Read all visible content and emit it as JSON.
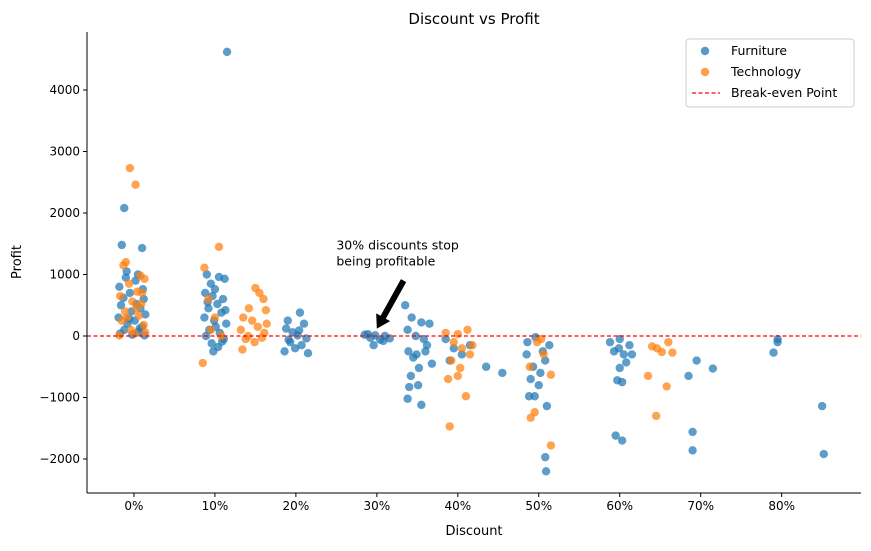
{
  "chart_data": {
    "type": "scatter",
    "title": "Discount vs Profit",
    "xlabel": "Discount",
    "ylabel": "Profit",
    "xlim": [
      -5.8,
      89.8
    ],
    "ylim": [
      -2553,
      4943
    ],
    "xticks": [
      0,
      10,
      20,
      30,
      40,
      50,
      60,
      70,
      80
    ],
    "xtick_labels": [
      "0%",
      "10%",
      "20%",
      "30%",
      "40%",
      "50%",
      "60%",
      "70%",
      "80%"
    ],
    "yticks": [
      -2000,
      -1000,
      0,
      1000,
      2000,
      3000,
      4000
    ],
    "ytick_labels": [
      "−2000",
      "−1000",
      "0",
      "1000",
      "2000",
      "3000",
      "4000"
    ],
    "grid": false,
    "legend_position": "top-right",
    "reference_line": {
      "label": "Break-even Point",
      "y": 0,
      "color": "#ff0000",
      "style": "dashed"
    },
    "annotation": {
      "lines": [
        "30% discounts stop",
        "being profitable"
      ],
      "text_at": [
        25,
        1150
      ],
      "arrow_tip": [
        30,
        120
      ],
      "arrow_tail": [
        33.3,
        900
      ]
    },
    "series": [
      {
        "name": "Furniture",
        "color": "#1f77b4",
        "points": [
          [
            -1.5,
            1480
          ],
          [
            -1.2,
            2080
          ],
          [
            1,
            1430
          ],
          [
            0.5,
            1000
          ],
          [
            -1.8,
            800
          ],
          [
            -1,
            950
          ],
          [
            0.2,
            900
          ],
          [
            -0.5,
            700
          ],
          [
            1.2,
            600
          ],
          [
            -1.6,
            500
          ],
          [
            0.8,
            450
          ],
          [
            -0.3,
            400
          ],
          [
            1.4,
            350
          ],
          [
            -1.9,
            300
          ],
          [
            0.1,
            250
          ],
          [
            -0.8,
            200
          ],
          [
            1,
            150
          ],
          [
            -1.2,
            100
          ],
          [
            0.5,
            60
          ],
          [
            -0.2,
            20
          ],
          [
            1.3,
            10
          ],
          [
            -1.7,
            40
          ],
          [
            0.7,
            120
          ],
          [
            -0.6,
            280
          ],
          [
            0.3,
            520
          ],
          [
            -1.3,
            620
          ],
          [
            1.1,
            760
          ],
          [
            -0.9,
            1050
          ],
          [
            11.5,
            4620
          ],
          [
            9,
            1000
          ],
          [
            10.5,
            960
          ],
          [
            11.2,
            930
          ],
          [
            9.5,
            850
          ],
          [
            10,
            760
          ],
          [
            8.8,
            700
          ],
          [
            9.7,
            650
          ],
          [
            11,
            600
          ],
          [
            10.3,
            520
          ],
          [
            9.2,
            450
          ],
          [
            10.8,
            380
          ],
          [
            8.7,
            300
          ],
          [
            9.9,
            250
          ],
          [
            11.4,
            200
          ],
          [
            10.1,
            150
          ],
          [
            9.3,
            100
          ],
          [
            10.6,
            50
          ],
          [
            8.9,
            0
          ],
          [
            11.1,
            -50
          ],
          [
            9.6,
            -120
          ],
          [
            10.4,
            -180
          ],
          [
            9.8,
            -250
          ],
          [
            10.9,
            -90
          ],
          [
            9.1,
            550
          ],
          [
            11.3,
            420
          ],
          [
            19,
            250
          ],
          [
            20.5,
            380
          ],
          [
            21,
            200
          ],
          [
            18.8,
            120
          ],
          [
            19.6,
            60
          ],
          [
            20.2,
            10
          ],
          [
            21.3,
            -40
          ],
          [
            19.3,
            -100
          ],
          [
            20.7,
            -150
          ],
          [
            18.6,
            -250
          ],
          [
            21.5,
            -280
          ],
          [
            19.9,
            -200
          ],
          [
            20.4,
            90
          ],
          [
            19.1,
            -60
          ],
          [
            28.5,
            20
          ],
          [
            29.2,
            -30
          ],
          [
            29.8,
            10
          ],
          [
            30.4,
            -60
          ],
          [
            31,
            0
          ],
          [
            31.6,
            -40
          ],
          [
            29.6,
            -150
          ],
          [
            30.8,
            -80
          ],
          [
            28.9,
            30
          ],
          [
            33.5,
            500
          ],
          [
            34.3,
            300
          ],
          [
            35.5,
            220
          ],
          [
            36.5,
            200
          ],
          [
            33.8,
            100
          ],
          [
            34.8,
            0
          ],
          [
            35.8,
            -50
          ],
          [
            36.2,
            -150
          ],
          [
            33.9,
            -250
          ],
          [
            34.5,
            -350
          ],
          [
            35.2,
            -520
          ],
          [
            36.8,
            -450
          ],
          [
            34.2,
            -650
          ],
          [
            34,
            -830
          ],
          [
            35.1,
            -800
          ],
          [
            33.8,
            -1020
          ],
          [
            35.5,
            -1120
          ],
          [
            36,
            -250
          ],
          [
            34.9,
            -300
          ],
          [
            38.5,
            -50
          ],
          [
            39.5,
            -200
          ],
          [
            40.5,
            -300
          ],
          [
            41.5,
            -150
          ],
          [
            39,
            -400
          ],
          [
            43.5,
            -500
          ],
          [
            45.5,
            -600
          ],
          [
            48.5,
            -300
          ],
          [
            49,
            -700
          ],
          [
            49.5,
            -980
          ],
          [
            48.8,
            -980
          ],
          [
            50.2,
            -600
          ],
          [
            50.8,
            -400
          ],
          [
            51.3,
            -150
          ],
          [
            49.6,
            -20
          ],
          [
            50.5,
            -250
          ],
          [
            51,
            -1140
          ],
          [
            50.8,
            -1970
          ],
          [
            50.9,
            -2200
          ],
          [
            49.3,
            -500
          ],
          [
            50,
            -800
          ],
          [
            48.6,
            -100
          ],
          [
            58.8,
            -100
          ],
          [
            59.3,
            -250
          ],
          [
            60,
            -50
          ],
          [
            60.5,
            -300
          ],
          [
            61.2,
            -150
          ],
          [
            59.7,
            -720
          ],
          [
            60.3,
            -750
          ],
          [
            60,
            -520
          ],
          [
            60.8,
            -430
          ],
          [
            61.5,
            -300
          ],
          [
            59.5,
            -1620
          ],
          [
            60.3,
            -1700
          ],
          [
            59.9,
            -200
          ],
          [
            68.5,
            -650
          ],
          [
            69,
            -1560
          ],
          [
            69,
            -1860
          ],
          [
            69.5,
            -400
          ],
          [
            71.5,
            -530
          ],
          [
            79,
            -270
          ],
          [
            79.5,
            -50
          ],
          [
            79.5,
            -100
          ],
          [
            85,
            -1140
          ],
          [
            85.2,
            -1920
          ]
        ]
      },
      {
        "name": "Technology",
        "color": "#ff7f0e",
        "points": [
          [
            -0.5,
            2730
          ],
          [
            0.2,
            2460
          ],
          [
            -1.3,
            1150
          ],
          [
            -1,
            1200
          ],
          [
            0.8,
            980
          ],
          [
            1.3,
            930
          ],
          [
            -0.6,
            850
          ],
          [
            0.4,
            720
          ],
          [
            1,
            700
          ],
          [
            -1.7,
            650
          ],
          [
            -0.2,
            560
          ],
          [
            0.9,
            520
          ],
          [
            -1.1,
            400
          ],
          [
            0.6,
            330
          ],
          [
            -1.5,
            250
          ],
          [
            1.2,
            180
          ],
          [
            -0.4,
            100
          ],
          [
            0.1,
            40
          ],
          [
            -1.8,
            10
          ],
          [
            1.4,
            60
          ],
          [
            -0.9,
            300
          ],
          [
            0.3,
            450
          ],
          [
            8.5,
            -440
          ],
          [
            8.7,
            1110
          ],
          [
            10.5,
            1450
          ],
          [
            9.2,
            600
          ],
          [
            10,
            300
          ],
          [
            9.5,
            100
          ],
          [
            10.8,
            0
          ],
          [
            13.5,
            300
          ],
          [
            14.2,
            450
          ],
          [
            15,
            780
          ],
          [
            15.5,
            700
          ],
          [
            16,
            600
          ],
          [
            16.3,
            420
          ],
          [
            13.2,
            100
          ],
          [
            14.6,
            250
          ],
          [
            15.3,
            150
          ],
          [
            16.1,
            50
          ],
          [
            13.8,
            -50
          ],
          [
            14.9,
            -100
          ],
          [
            13.4,
            -220
          ],
          [
            15.8,
            -30
          ],
          [
            14.1,
            0
          ],
          [
            16.4,
            200
          ],
          [
            38.5,
            50
          ],
          [
            39.5,
            -100
          ],
          [
            40,
            30
          ],
          [
            40.5,
            -200
          ],
          [
            41.2,
            100
          ],
          [
            41.5,
            -300
          ],
          [
            39.2,
            -400
          ],
          [
            40.3,
            -520
          ],
          [
            38.8,
            -700
          ],
          [
            40,
            -650
          ],
          [
            39,
            -1470
          ],
          [
            41,
            -980
          ],
          [
            41.8,
            -150
          ],
          [
            49,
            -1330
          ],
          [
            49.5,
            -1240
          ],
          [
            51.5,
            -1780
          ],
          [
            51.5,
            -630
          ],
          [
            49.8,
            -100
          ],
          [
            50.6,
            -300
          ],
          [
            48.9,
            -500
          ],
          [
            50.3,
            -50
          ],
          [
            63.5,
            -650
          ],
          [
            64.5,
            -1300
          ],
          [
            65.8,
            -820
          ],
          [
            64,
            -170
          ],
          [
            66,
            -100
          ],
          [
            66.5,
            -270
          ],
          [
            65.2,
            -260
          ],
          [
            64.6,
            -200
          ]
        ]
      }
    ]
  }
}
